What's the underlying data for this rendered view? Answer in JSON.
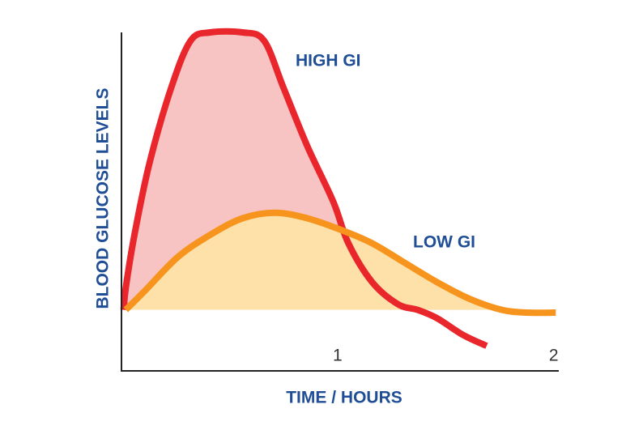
{
  "chart_data": {
    "type": "line",
    "y_label": "BLOOD GLUCOSE LEVELS",
    "x_label": "TIME / HOURS",
    "xlim": [
      0,
      2.02
    ],
    "xticks": [
      1,
      2
    ],
    "ylim": [
      -22,
      100
    ],
    "series": [
      {
        "name": "HIGH GI",
        "color": "#e8262b",
        "fill": "#f8c3c3",
        "x": [
          0.01,
          0.02,
          0.06,
          0.13,
          0.23,
          0.32,
          0.41,
          0.56,
          0.66,
          0.75,
          0.86,
          0.98,
          1.05,
          1.16,
          1.28,
          1.37,
          1.46,
          1.58,
          1.69
        ],
        "values": [
          0,
          8,
          27,
          53,
          80,
          97,
          100,
          100,
          97,
          80,
          59,
          39,
          24,
          10,
          2,
          0,
          -3,
          -9,
          -13
        ]
      },
      {
        "name": "LOW GI",
        "color": "#f7941d",
        "fill": "#fde1a8",
        "x": [
          0.02,
          0.11,
          0.26,
          0.41,
          0.56,
          0.71,
          0.86,
          1.01,
          1.16,
          1.31,
          1.46,
          1.61,
          1.76,
          1.88,
          2.01
        ],
        "values": [
          0,
          7,
          19,
          27,
          33,
          35,
          33,
          29,
          24,
          17,
          10,
          4,
          0,
          -1,
          -1
        ]
      }
    ]
  }
}
